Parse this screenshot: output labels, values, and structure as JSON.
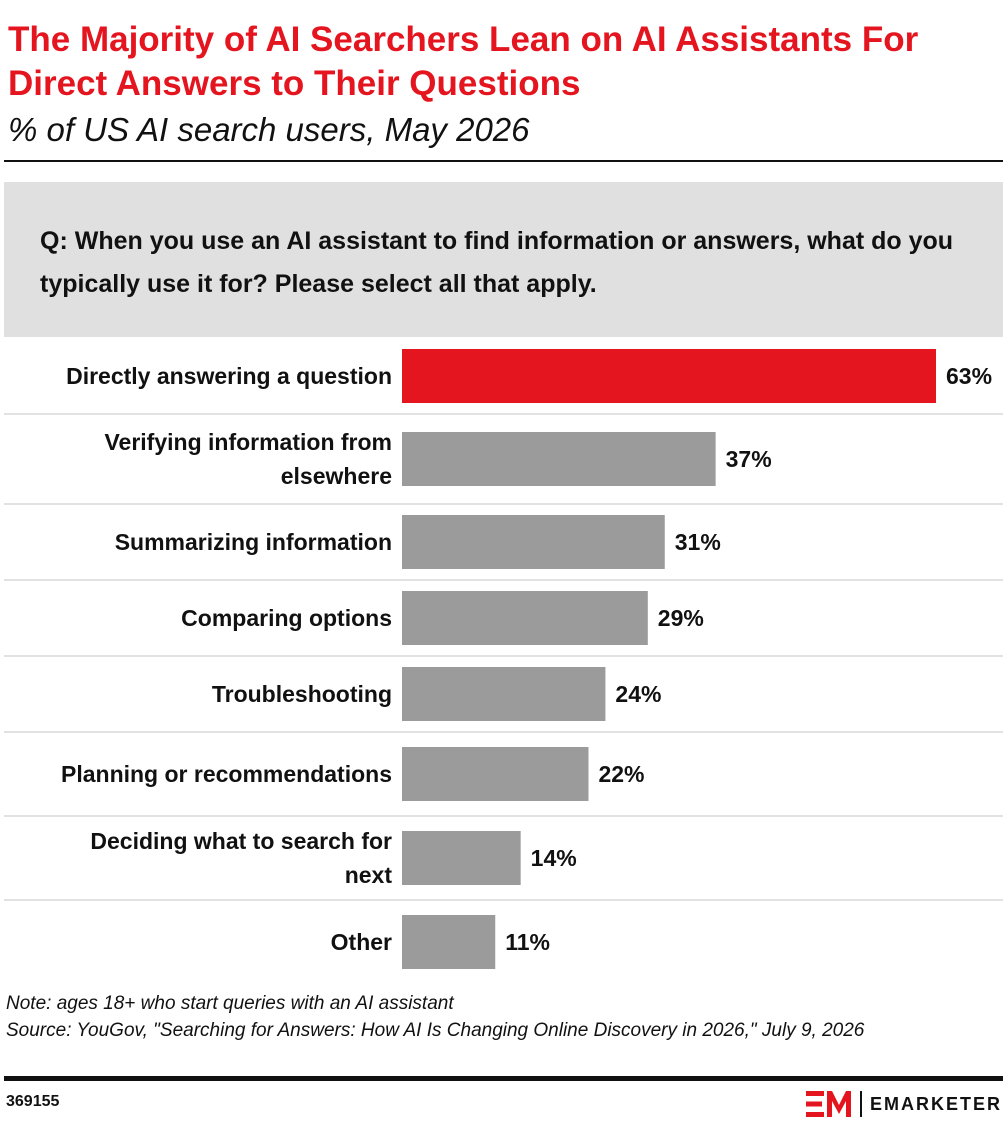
{
  "header": {
    "title": "The Majority of AI Searchers Lean on AI Assistants For Direct Answers to Their Questions",
    "subtitle": "% of US AI search users, May 2026"
  },
  "question": "Q: When you use an AI assistant to find information or answers, what do you typically use it for? Please select all that apply.",
  "colors": {
    "highlight": "#e4151f",
    "bar": "#9b9b9b",
    "rule": "#111111",
    "question_bg": "#e0e0e0",
    "row_divider": "#d9d9d9"
  },
  "chart_data": {
    "type": "bar",
    "orientation": "horizontal",
    "categories": [
      "Directly answering a question",
      "Verifying information from elsewhere",
      "Summarizing information",
      "Comparing options",
      "Troubleshooting",
      "Planning or recommendations",
      "Deciding what to search for next",
      "Other"
    ],
    "values": [
      63,
      37,
      31,
      29,
      24,
      22,
      14,
      11
    ],
    "value_labels": [
      "63%",
      "37%",
      "31%",
      "29%",
      "24%",
      "22%",
      "14%",
      "11%"
    ],
    "highlight_index": 0,
    "xlim": [
      0,
      63
    ],
    "grid": false
  },
  "footer": {
    "note": "Note: ages 18+ who start queries with an AI assistant",
    "source": "Source: YouGov, \"Searching for Answers: How AI Is Changing Online Discovery in 2026,\" July 9, 2026",
    "chart_id": "369155",
    "logo_mark": "EM",
    "logo_word": "EMARKETER"
  }
}
